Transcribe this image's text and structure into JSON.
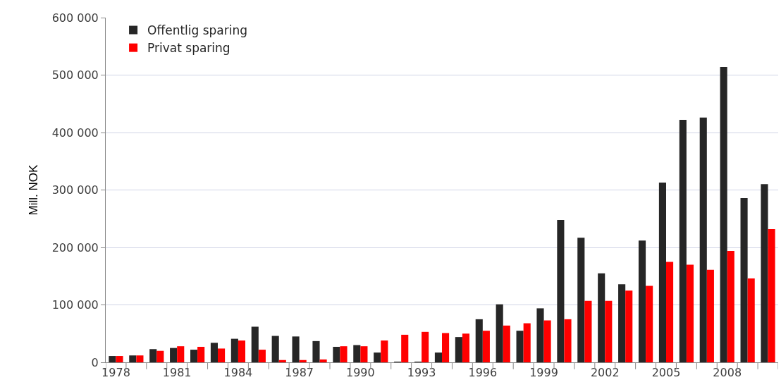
{
  "chart_data": {
    "type": "bar",
    "ylabel": "Mill. NOK",
    "categories": [
      "1978",
      null,
      null,
      "1981",
      null,
      null,
      "1984",
      null,
      null,
      "1987",
      null,
      null,
      "1990",
      null,
      null,
      "1993",
      null,
      null,
      "1996",
      null,
      null,
      "1999",
      null,
      null,
      "2002",
      null,
      null,
      "2005",
      null,
      null,
      "2008",
      null,
      null
    ],
    "series": [
      {
        "name": "Offentlig sparing",
        "color": "#262626",
        "values": [
          11000,
          12000,
          23000,
          25000,
          22000,
          34000,
          41000,
          62000,
          46000,
          45000,
          37000,
          27000,
          30000,
          17000,
          1000,
          1000,
          17000,
          44000,
          75000,
          101000,
          55000,
          94000,
          248000,
          217000,
          155000,
          136000,
          212000,
          313000,
          422000,
          426000,
          514000,
          286000,
          310000
        ]
      },
      {
        "name": "Privat sparing",
        "color": "#ff0000",
        "values": [
          11000,
          12000,
          20000,
          28000,
          27000,
          24000,
          38000,
          22000,
          4000,
          4000,
          5000,
          28000,
          28000,
          38000,
          48000,
          53000,
          51000,
          50000,
          55000,
          64000,
          68000,
          73000,
          75000,
          107000,
          107000,
          125000,
          133000,
          175000,
          170000,
          161000,
          194000,
          146000,
          232000
        ]
      }
    ],
    "ylim": [
      0,
      600000
    ],
    "yticks": [
      {
        "value": 0,
        "label": "0"
      },
      {
        "value": 100000,
        "label": "100 000"
      },
      {
        "value": 200000,
        "label": "200 000"
      },
      {
        "value": 300000,
        "label": "300 000"
      },
      {
        "value": 400000,
        "label": "400 000"
      },
      {
        "value": 500000,
        "label": "500 000"
      },
      {
        "value": 600000,
        "label": "600 000"
      }
    ],
    "grid": "y",
    "legend": "top left"
  }
}
